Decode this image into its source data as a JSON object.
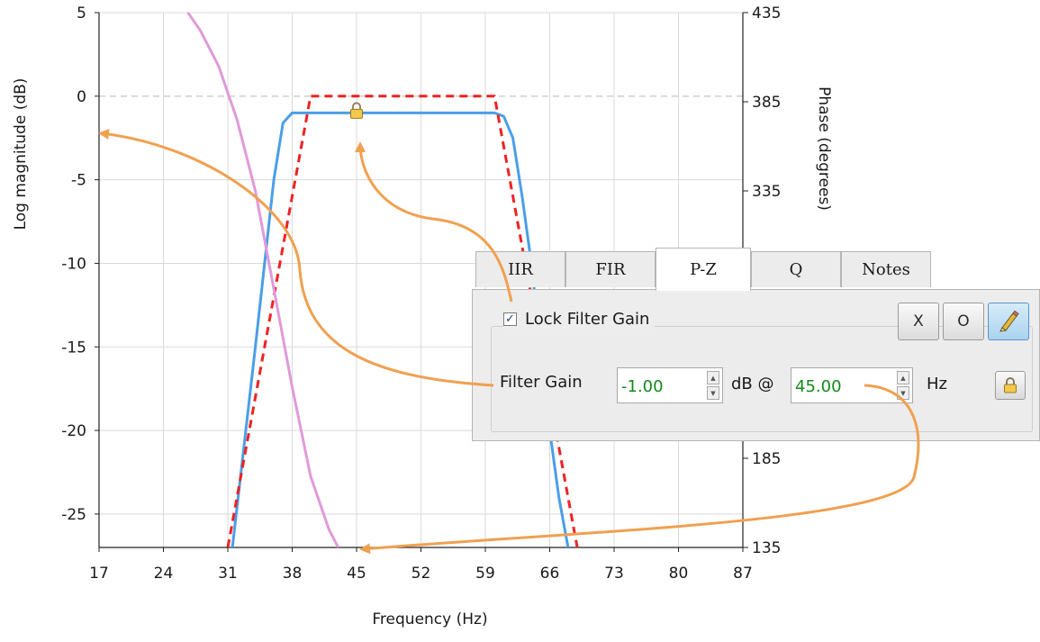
{
  "chart_data": {
    "type": "line",
    "xlabel": "Frequency (Hz)",
    "ylabel": "Log magnitude (dB)",
    "y2label": "Phase (degrees)",
    "xlim": [
      17,
      87
    ],
    "ylim": [
      -27,
      5
    ],
    "y2lim": [
      135,
      435
    ],
    "x_ticks": [
      "17",
      "24",
      "31",
      "38",
      "45",
      "52",
      "59",
      "66",
      "73",
      "80",
      "87"
    ],
    "y_ticks": [
      "5",
      "0",
      "-5",
      "-10",
      "-15",
      "-20",
      "-25"
    ],
    "y2_ticks": [
      "435",
      "385",
      "335",
      "185",
      "135"
    ],
    "grid": true,
    "series": [
      {
        "color": "#4a9ee8",
        "x": [
          31.5,
          34,
          36,
          37,
          38,
          60,
          61,
          62,
          63,
          64,
          65,
          66,
          67,
          68
        ],
        "y": [
          -27,
          -15,
          -5,
          -1.6,
          -1,
          -1,
          -1.2,
          -2.5,
          -6,
          -10,
          -15,
          -20,
          -24,
          -27
        ]
      },
      {
        "color": "#ee2222",
        "dashed": true,
        "x": [
          31,
          40,
          60,
          69
        ],
        "y": [
          -27,
          0,
          0,
          -27
        ]
      },
      {
        "color": "#e09ad8",
        "y_axis": "right",
        "x": [
          26,
          28,
          30,
          32,
          34,
          36,
          38,
          40,
          42,
          43
        ],
        "y": [
          440,
          425,
          405,
          375,
          335,
          280,
          225,
          175,
          145,
          135
        ]
      }
    ],
    "marker": {
      "x": 45,
      "y": -1
    }
  },
  "panel": {
    "tabs": [
      "IIR",
      "FIR",
      "P-Z",
      "Q",
      "Notes"
    ],
    "active_tab": "P-Z",
    "lock_checked": true,
    "checkmark": "✓",
    "lock_label": "Lock Filter Gain",
    "btn_x": "X",
    "btn_o": "O",
    "gain_label": "Filter Gain",
    "gain_value": "-1.00",
    "db_at": "dB @",
    "freq_value": "45.00",
    "hz": "Hz"
  },
  "colors": {
    "annotation": "#f0a050",
    "value_text": "#138a1a"
  }
}
